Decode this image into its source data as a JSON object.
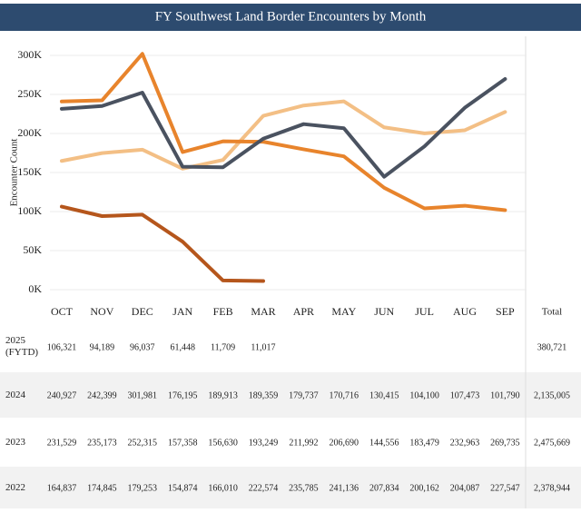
{
  "chart_data": {
    "type": "line",
    "title": "FY Southwest Land Border Encounters by Month",
    "y_label": "Encounter Count",
    "categories": [
      "OCT",
      "NOV",
      "DEC",
      "JAN",
      "FEB",
      "MAR",
      "APR",
      "MAY",
      "JUN",
      "JUL",
      "AUG",
      "SEP"
    ],
    "total_label": "Total",
    "ylim": [
      0,
      300000
    ],
    "yticks": [
      {
        "value": 0,
        "label": "0K"
      },
      {
        "value": 50000,
        "label": "50K"
      },
      {
        "value": 100000,
        "label": "100K"
      },
      {
        "value": 150000,
        "label": "150K"
      },
      {
        "value": 200000,
        "label": "200K"
      },
      {
        "value": 250000,
        "label": "250K"
      },
      {
        "value": 300000,
        "label": "300K"
      }
    ],
    "grid": true,
    "series": [
      {
        "name": "2025 (FYTD)",
        "color": "#b5561c",
        "values": [
          106321,
          94189,
          96037,
          61448,
          11709,
          11017,
          null,
          null,
          null,
          null,
          null,
          null
        ],
        "value_labels": [
          "106,321",
          "94,189",
          "96,037",
          "61,448",
          "11,709",
          "11,017",
          null,
          null,
          null,
          null,
          null,
          null
        ],
        "total": "380,721"
      },
      {
        "name": "2024",
        "color": "#e8842c",
        "values": [
          240927,
          242399,
          301981,
          176195,
          189913,
          189359,
          179737,
          170716,
          130415,
          104100,
          107473,
          101790
        ],
        "value_labels": [
          "240,927",
          "242,399",
          "301,981",
          "176,195",
          "189,913",
          "189,359",
          "179,737",
          "170,716",
          "130,415",
          "104,100",
          "107,473",
          "101,790"
        ],
        "total": "2,135,005"
      },
      {
        "name": "2023",
        "color": "#4a5260",
        "values": [
          231529,
          235173,
          252315,
          157358,
          156630,
          193249,
          211992,
          206690,
          144556,
          183479,
          232963,
          269735
        ],
        "value_labels": [
          "231,529",
          "235,173",
          "252,315",
          "157,358",
          "156,630",
          "193,249",
          "211,992",
          "206,690",
          "144,556",
          "183,479",
          "232,963",
          "269,735"
        ],
        "total": "2,475,669"
      },
      {
        "name": "2022",
        "color": "#f3bf85",
        "values": [
          164837,
          174845,
          179253,
          154874,
          166010,
          222574,
          235785,
          241136,
          207834,
          200162,
          204087,
          227547
        ],
        "value_labels": [
          "164,837",
          "174,845",
          "179,253",
          "154,874",
          "166,010",
          "222,574",
          "235,785",
          "241,136",
          "207,834",
          "200,162",
          "204,087",
          "227,547"
        ],
        "total": "2,378,944"
      }
    ]
  }
}
